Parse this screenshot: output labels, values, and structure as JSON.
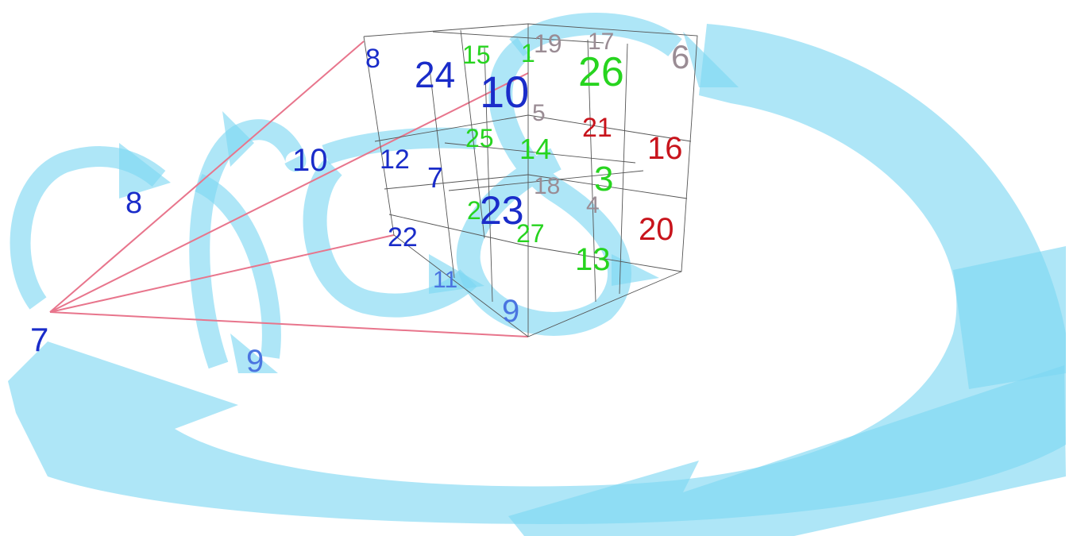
{
  "colors": {
    "arrow": "#7dd6f2",
    "ray": "#e8758c",
    "grid": "#555555",
    "blue": "#1a2cc9",
    "light_blue": "#4a74e0",
    "green": "#27d41f",
    "red": "#c8141c",
    "gray": "#9a8c94"
  },
  "chain_labels": {
    "n7": "7",
    "n8": "8",
    "n9": "9",
    "n10": "10",
    "n11": "11",
    "n9b": "9",
    "n6": "6"
  },
  "cube_labels": {
    "c8": "8",
    "c24": "24",
    "c15": "15",
    "c1": "1",
    "c19": "19",
    "c17": "17",
    "c26": "26",
    "c10": "10",
    "c5": "5",
    "c21": "21",
    "c16": "16",
    "c25": "25",
    "c14": "14",
    "c12": "12",
    "c7": "7",
    "c3": "3",
    "c18": "18",
    "c4": "4",
    "c2": "2",
    "c23": "23",
    "c20": "20",
    "c22": "22",
    "c27": "27",
    "c13": "13"
  }
}
